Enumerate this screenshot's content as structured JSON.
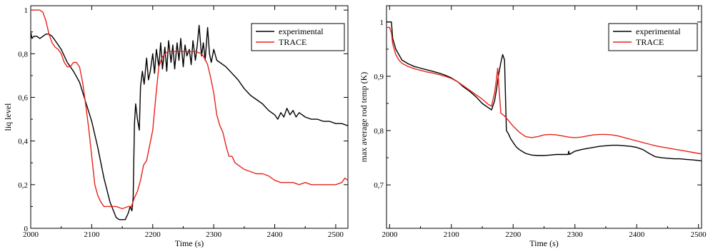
{
  "chart_data": [
    {
      "type": "line",
      "xlabel": "Time (s)",
      "ylabel": "liq level",
      "xlim": [
        2000,
        2520
      ],
      "ylim": [
        0,
        1.02
      ],
      "xticks": [
        2000,
        2100,
        2200,
        2300,
        2400,
        2500
      ],
      "xtick_labels": [
        "2000",
        "2100",
        "2200",
        "2300",
        "2400",
        "2500"
      ],
      "yticks": [
        0,
        0.2,
        0.4,
        0.6,
        0.8,
        1
      ],
      "ytick_labels": [
        "0",
        "0,2",
        "0,4",
        "0,6",
        "0,8",
        "1"
      ],
      "grid": false,
      "legend_position": "top-right",
      "series": [
        {
          "name": "experimental",
          "color": "#000000",
          "x": [
            2000,
            2002,
            2005,
            2010,
            2015,
            2020,
            2025,
            2030,
            2035,
            2040,
            2050,
            2060,
            2070,
            2080,
            2090,
            2100,
            2110,
            2120,
            2130,
            2140,
            2145,
            2150,
            2155,
            2160,
            2163,
            2166,
            2168,
            2170,
            2172,
            2175,
            2178,
            2180,
            2183,
            2186,
            2190,
            2193,
            2196,
            2200,
            2203,
            2206,
            2210,
            2213,
            2216,
            2220,
            2223,
            2226,
            2230,
            2233,
            2236,
            2240,
            2243,
            2246,
            2250,
            2253,
            2256,
            2260,
            2263,
            2266,
            2270,
            2273,
            2276,
            2280,
            2283,
            2286,
            2290,
            2293,
            2296,
            2300,
            2305,
            2310,
            2320,
            2330,
            2340,
            2350,
            2360,
            2370,
            2380,
            2390,
            2400,
            2405,
            2410,
            2415,
            2420,
            2425,
            2430,
            2435,
            2440,
            2445,
            2450,
            2460,
            2470,
            2480,
            2490,
            2500,
            2510,
            2520
          ],
          "values": [
            0.9,
            0.87,
            0.88,
            0.88,
            0.87,
            0.88,
            0.89,
            0.89,
            0.88,
            0.86,
            0.82,
            0.76,
            0.72,
            0.67,
            0.58,
            0.49,
            0.37,
            0.23,
            0.12,
            0.05,
            0.04,
            0.04,
            0.04,
            0.07,
            0.1,
            0.08,
            0.14,
            0.48,
            0.57,
            0.5,
            0.45,
            0.65,
            0.72,
            0.66,
            0.78,
            0.68,
            0.72,
            0.8,
            0.71,
            0.82,
            0.74,
            0.85,
            0.73,
            0.83,
            0.72,
            0.86,
            0.76,
            0.84,
            0.73,
            0.85,
            0.77,
            0.87,
            0.74,
            0.84,
            0.79,
            0.82,
            0.75,
            0.86,
            0.77,
            0.84,
            0.93,
            0.79,
            0.85,
            0.77,
            0.92,
            0.8,
            0.76,
            0.82,
            0.77,
            0.76,
            0.74,
            0.71,
            0.68,
            0.64,
            0.61,
            0.59,
            0.57,
            0.54,
            0.52,
            0.5,
            0.53,
            0.51,
            0.55,
            0.52,
            0.54,
            0.51,
            0.53,
            0.52,
            0.51,
            0.5,
            0.5,
            0.49,
            0.49,
            0.48,
            0.48,
            0.47
          ]
        },
        {
          "name": "TRACE",
          "color": "#e8231c",
          "x": [
            2000,
            2005,
            2010,
            2015,
            2020,
            2025,
            2030,
            2035,
            2040,
            2045,
            2050,
            2055,
            2060,
            2065,
            2070,
            2075,
            2080,
            2085,
            2090,
            2095,
            2100,
            2105,
            2110,
            2115,
            2120,
            2130,
            2140,
            2150,
            2160,
            2165,
            2170,
            2175,
            2180,
            2185,
            2190,
            2195,
            2200,
            2205,
            2210,
            2215,
            2220,
            2225,
            2230,
            2240,
            2250,
            2260,
            2270,
            2280,
            2285,
            2290,
            2295,
            2300,
            2305,
            2310,
            2315,
            2320,
            2325,
            2330,
            2335,
            2340,
            2350,
            2360,
            2370,
            2380,
            2390,
            2400,
            2410,
            2420,
            2430,
            2440,
            2450,
            2460,
            2470,
            2480,
            2490,
            2500,
            2510,
            2515,
            2520
          ],
          "values": [
            1.0,
            1.0,
            1.0,
            1.0,
            0.99,
            0.95,
            0.89,
            0.85,
            0.83,
            0.82,
            0.8,
            0.76,
            0.74,
            0.74,
            0.76,
            0.76,
            0.74,
            0.67,
            0.57,
            0.46,
            0.33,
            0.2,
            0.15,
            0.12,
            0.1,
            0.1,
            0.1,
            0.09,
            0.1,
            0.1,
            0.14,
            0.17,
            0.22,
            0.29,
            0.31,
            0.38,
            0.45,
            0.6,
            0.74,
            0.78,
            0.8,
            0.81,
            0.81,
            0.81,
            0.81,
            0.81,
            0.81,
            0.8,
            0.78,
            0.75,
            0.69,
            0.62,
            0.52,
            0.47,
            0.44,
            0.38,
            0.33,
            0.33,
            0.3,
            0.29,
            0.27,
            0.26,
            0.25,
            0.25,
            0.24,
            0.22,
            0.21,
            0.21,
            0.21,
            0.2,
            0.21,
            0.2,
            0.2,
            0.2,
            0.2,
            0.2,
            0.21,
            0.23,
            0.22
          ]
        }
      ]
    },
    {
      "type": "line",
      "xlabel": "Time (s)",
      "ylabel": "max average rod temp (K)",
      "xlim": [
        1995,
        2505
      ],
      "ylim": [
        0.62,
        1.03
      ],
      "xticks": [
        2000,
        2100,
        2200,
        2300,
        2400,
        2500
      ],
      "xtick_labels": [
        "2000",
        "2100",
        "2200",
        "2300",
        "2400",
        "2500"
      ],
      "yticks": [
        0.7,
        0.8,
        0.9,
        1
      ],
      "ytick_labels": [
        "0,7",
        "0,8",
        "0,9",
        "1"
      ],
      "grid": false,
      "legend_position": "top-right",
      "series": [
        {
          "name": "experimental",
          "color": "#000000",
          "x": [
            1995,
            2000,
            2003,
            2005,
            2010,
            2015,
            2020,
            2030,
            2040,
            2050,
            2060,
            2070,
            2080,
            2090,
            2100,
            2110,
            2120,
            2130,
            2140,
            2150,
            2160,
            2165,
            2170,
            2173,
            2176,
            2180,
            2183,
            2186,
            2189,
            2192,
            2196,
            2200,
            2205,
            2210,
            2220,
            2230,
            2240,
            2250,
            2260,
            2270,
            2280,
            2289,
            2290,
            2291,
            2300,
            2310,
            2320,
            2330,
            2340,
            2350,
            2360,
            2370,
            2380,
            2390,
            2400,
            2410,
            2420,
            2430,
            2440,
            2450,
            2460,
            2470,
            2480,
            2490,
            2500,
            2505
          ],
          "values": [
            1.0,
            1.0,
            1.0,
            0.97,
            0.95,
            0.94,
            0.93,
            0.923,
            0.918,
            0.915,
            0.912,
            0.909,
            0.906,
            0.902,
            0.897,
            0.89,
            0.88,
            0.872,
            0.862,
            0.85,
            0.842,
            0.838,
            0.855,
            0.875,
            0.9,
            0.925,
            0.94,
            0.93,
            0.8,
            0.795,
            0.785,
            0.778,
            0.77,
            0.765,
            0.758,
            0.755,
            0.754,
            0.754,
            0.755,
            0.756,
            0.756,
            0.756,
            0.762,
            0.756,
            0.762,
            0.765,
            0.767,
            0.769,
            0.771,
            0.772,
            0.773,
            0.773,
            0.772,
            0.771,
            0.769,
            0.765,
            0.758,
            0.752,
            0.75,
            0.749,
            0.748,
            0.748,
            0.747,
            0.746,
            0.745,
            0.744
          ]
        },
        {
          "name": "TRACE",
          "color": "#e8231c",
          "x": [
            1995,
            2000,
            2003,
            2005,
            2010,
            2015,
            2020,
            2030,
            2040,
            2050,
            2060,
            2070,
            2080,
            2090,
            2100,
            2110,
            2120,
            2130,
            2140,
            2150,
            2160,
            2165,
            2170,
            2173,
            2175,
            2177,
            2180,
            2185,
            2190,
            2195,
            2200,
            2210,
            2220,
            2230,
            2240,
            2250,
            2260,
            2270,
            2280,
            2290,
            2300,
            2310,
            2320,
            2330,
            2340,
            2350,
            2360,
            2370,
            2380,
            2390,
            2400,
            2410,
            2420,
            2430,
            2440,
            2450,
            2460,
            2470,
            2480,
            2490,
            2500,
            2505
          ],
          "values": [
            0.99,
            0.99,
            0.98,
            0.96,
            0.94,
            0.93,
            0.924,
            0.918,
            0.914,
            0.911,
            0.908,
            0.906,
            0.903,
            0.9,
            0.896,
            0.89,
            0.882,
            0.874,
            0.866,
            0.858,
            0.848,
            0.845,
            0.87,
            0.895,
            0.915,
            0.88,
            0.832,
            0.828,
            0.822,
            0.815,
            0.808,
            0.797,
            0.789,
            0.787,
            0.789,
            0.792,
            0.793,
            0.792,
            0.79,
            0.788,
            0.787,
            0.788,
            0.79,
            0.792,
            0.793,
            0.793,
            0.792,
            0.79,
            0.787,
            0.784,
            0.781,
            0.778,
            0.775,
            0.772,
            0.77,
            0.768,
            0.766,
            0.764,
            0.762,
            0.76,
            0.758,
            0.757
          ]
        }
      ]
    }
  ]
}
